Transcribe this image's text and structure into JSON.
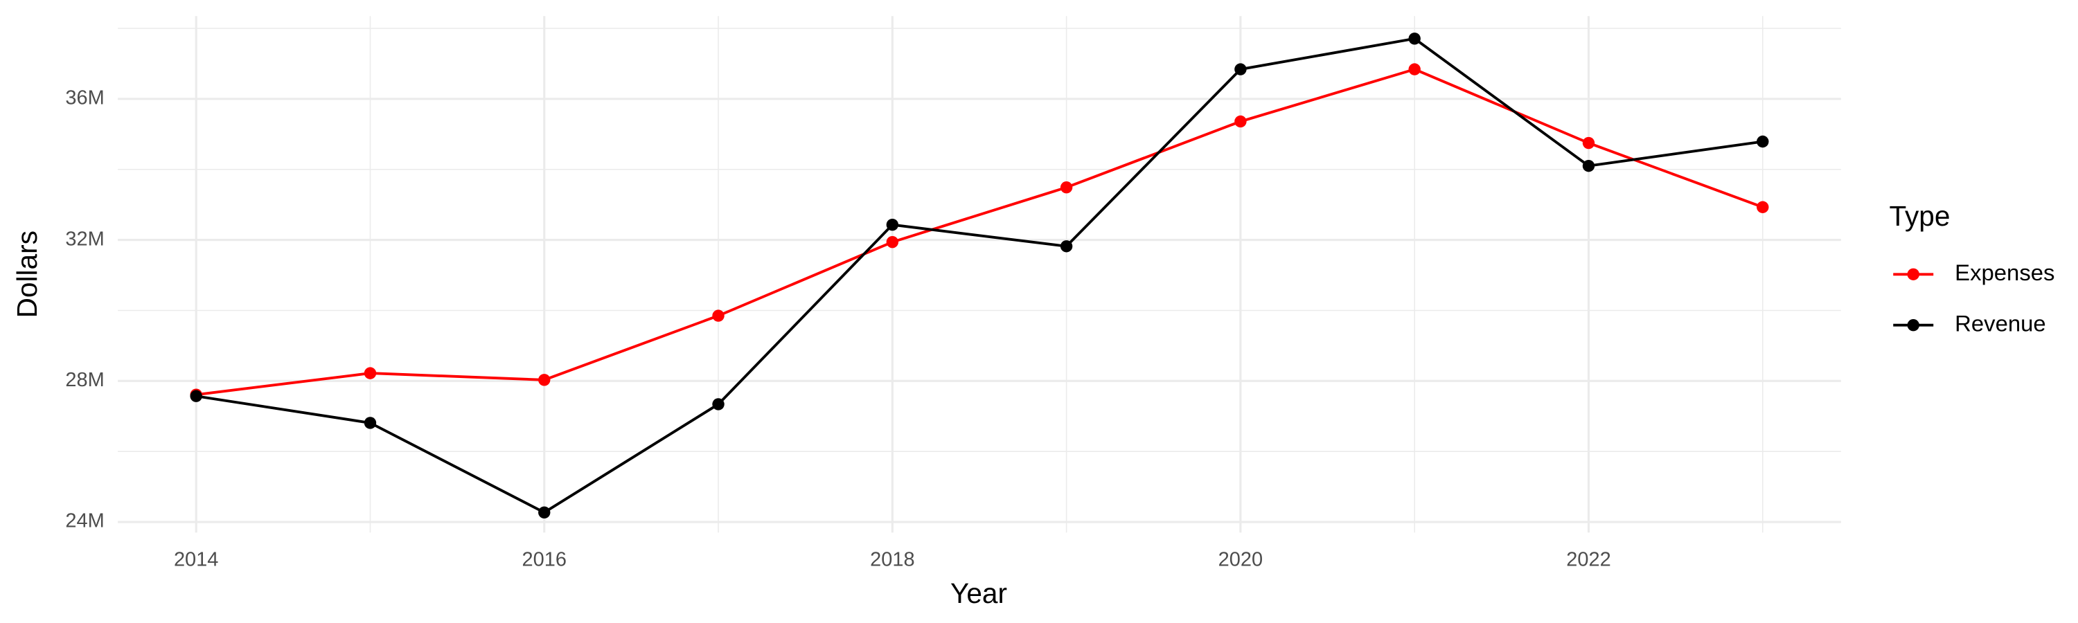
{
  "chart_data": {
    "type": "line",
    "x_label": "Year",
    "y_label": "Dollars",
    "legend_title": "Type",
    "x": [
      2014,
      2015,
      2016,
      2017,
      2018,
      2019,
      2020,
      2021,
      2022,
      2023
    ],
    "series": [
      {
        "name": "Expenses",
        "color": "#ff0000",
        "values": [
          27610000,
          28220000,
          28030000,
          29850000,
          31940000,
          33490000,
          35360000,
          36840000,
          34750000,
          32930000
        ]
      },
      {
        "name": "Revenue",
        "color": "#000000",
        "values": [
          27570000,
          26810000,
          24270000,
          27340000,
          32430000,
          31820000,
          36840000,
          37710000,
          34100000,
          34790000
        ]
      }
    ],
    "xlim": [
      2013.55,
      2023.45
    ],
    "xticks": [
      2014,
      2016,
      2018,
      2020,
      2022
    ],
    "ylim": [
      23700000,
      38350000
    ],
    "yticks": [
      {
        "value": 24000000,
        "label": "24M"
      },
      {
        "value": 28000000,
        "label": "28M"
      },
      {
        "value": 32000000,
        "label": "32M"
      },
      {
        "value": 36000000,
        "label": "36M"
      }
    ],
    "grid": true,
    "legend": "right"
  }
}
